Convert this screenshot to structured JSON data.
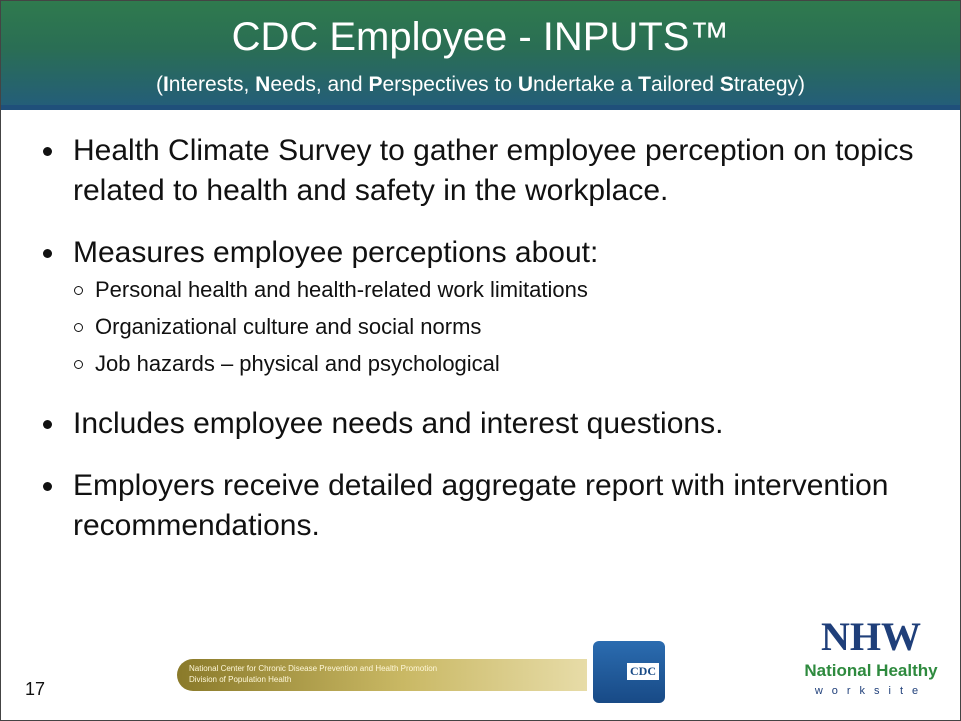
{
  "header": {
    "title": "CDC Employee - INPUTS™",
    "subtitle": [
      {
        "text": "(",
        "bold": false
      },
      {
        "text": "I",
        "bold": true
      },
      {
        "text": "nterests, ",
        "bold": false
      },
      {
        "text": "N",
        "bold": true
      },
      {
        "text": "eeds, and ",
        "bold": false
      },
      {
        "text": "P",
        "bold": true
      },
      {
        "text": "erspectives to ",
        "bold": false
      },
      {
        "text": "U",
        "bold": true
      },
      {
        "text": "ndertake a ",
        "bold": false
      },
      {
        "text": "T",
        "bold": true
      },
      {
        "text": "ailored ",
        "bold": false
      },
      {
        "text": "S",
        "bold": true
      },
      {
        "text": "trategy)",
        "bold": false
      }
    ]
  },
  "bullets": [
    {
      "text": "Health Climate Survey to gather employee perception on topics related to health and safety in the workplace."
    },
    {
      "text": "Measures employee perceptions about:",
      "subitems": [
        "Personal health and health-related work limitations",
        "Organizational culture and social norms",
        "Job hazards – physical and psychological"
      ]
    },
    {
      "text": "Includes employee needs and interest questions."
    },
    {
      "text": "Employers receive detailed aggregate report with intervention recommendations."
    }
  ],
  "footer": {
    "banner_lines": [
      "National Center for Chronic Disease Prevention and Health Promotion",
      "Division of Population Health"
    ],
    "cdc_logo": "CDC",
    "nhw_logo": {
      "mark": "NHW",
      "name": "National Healthy",
      "tagline": "worksite"
    },
    "slide_number": "17"
  }
}
